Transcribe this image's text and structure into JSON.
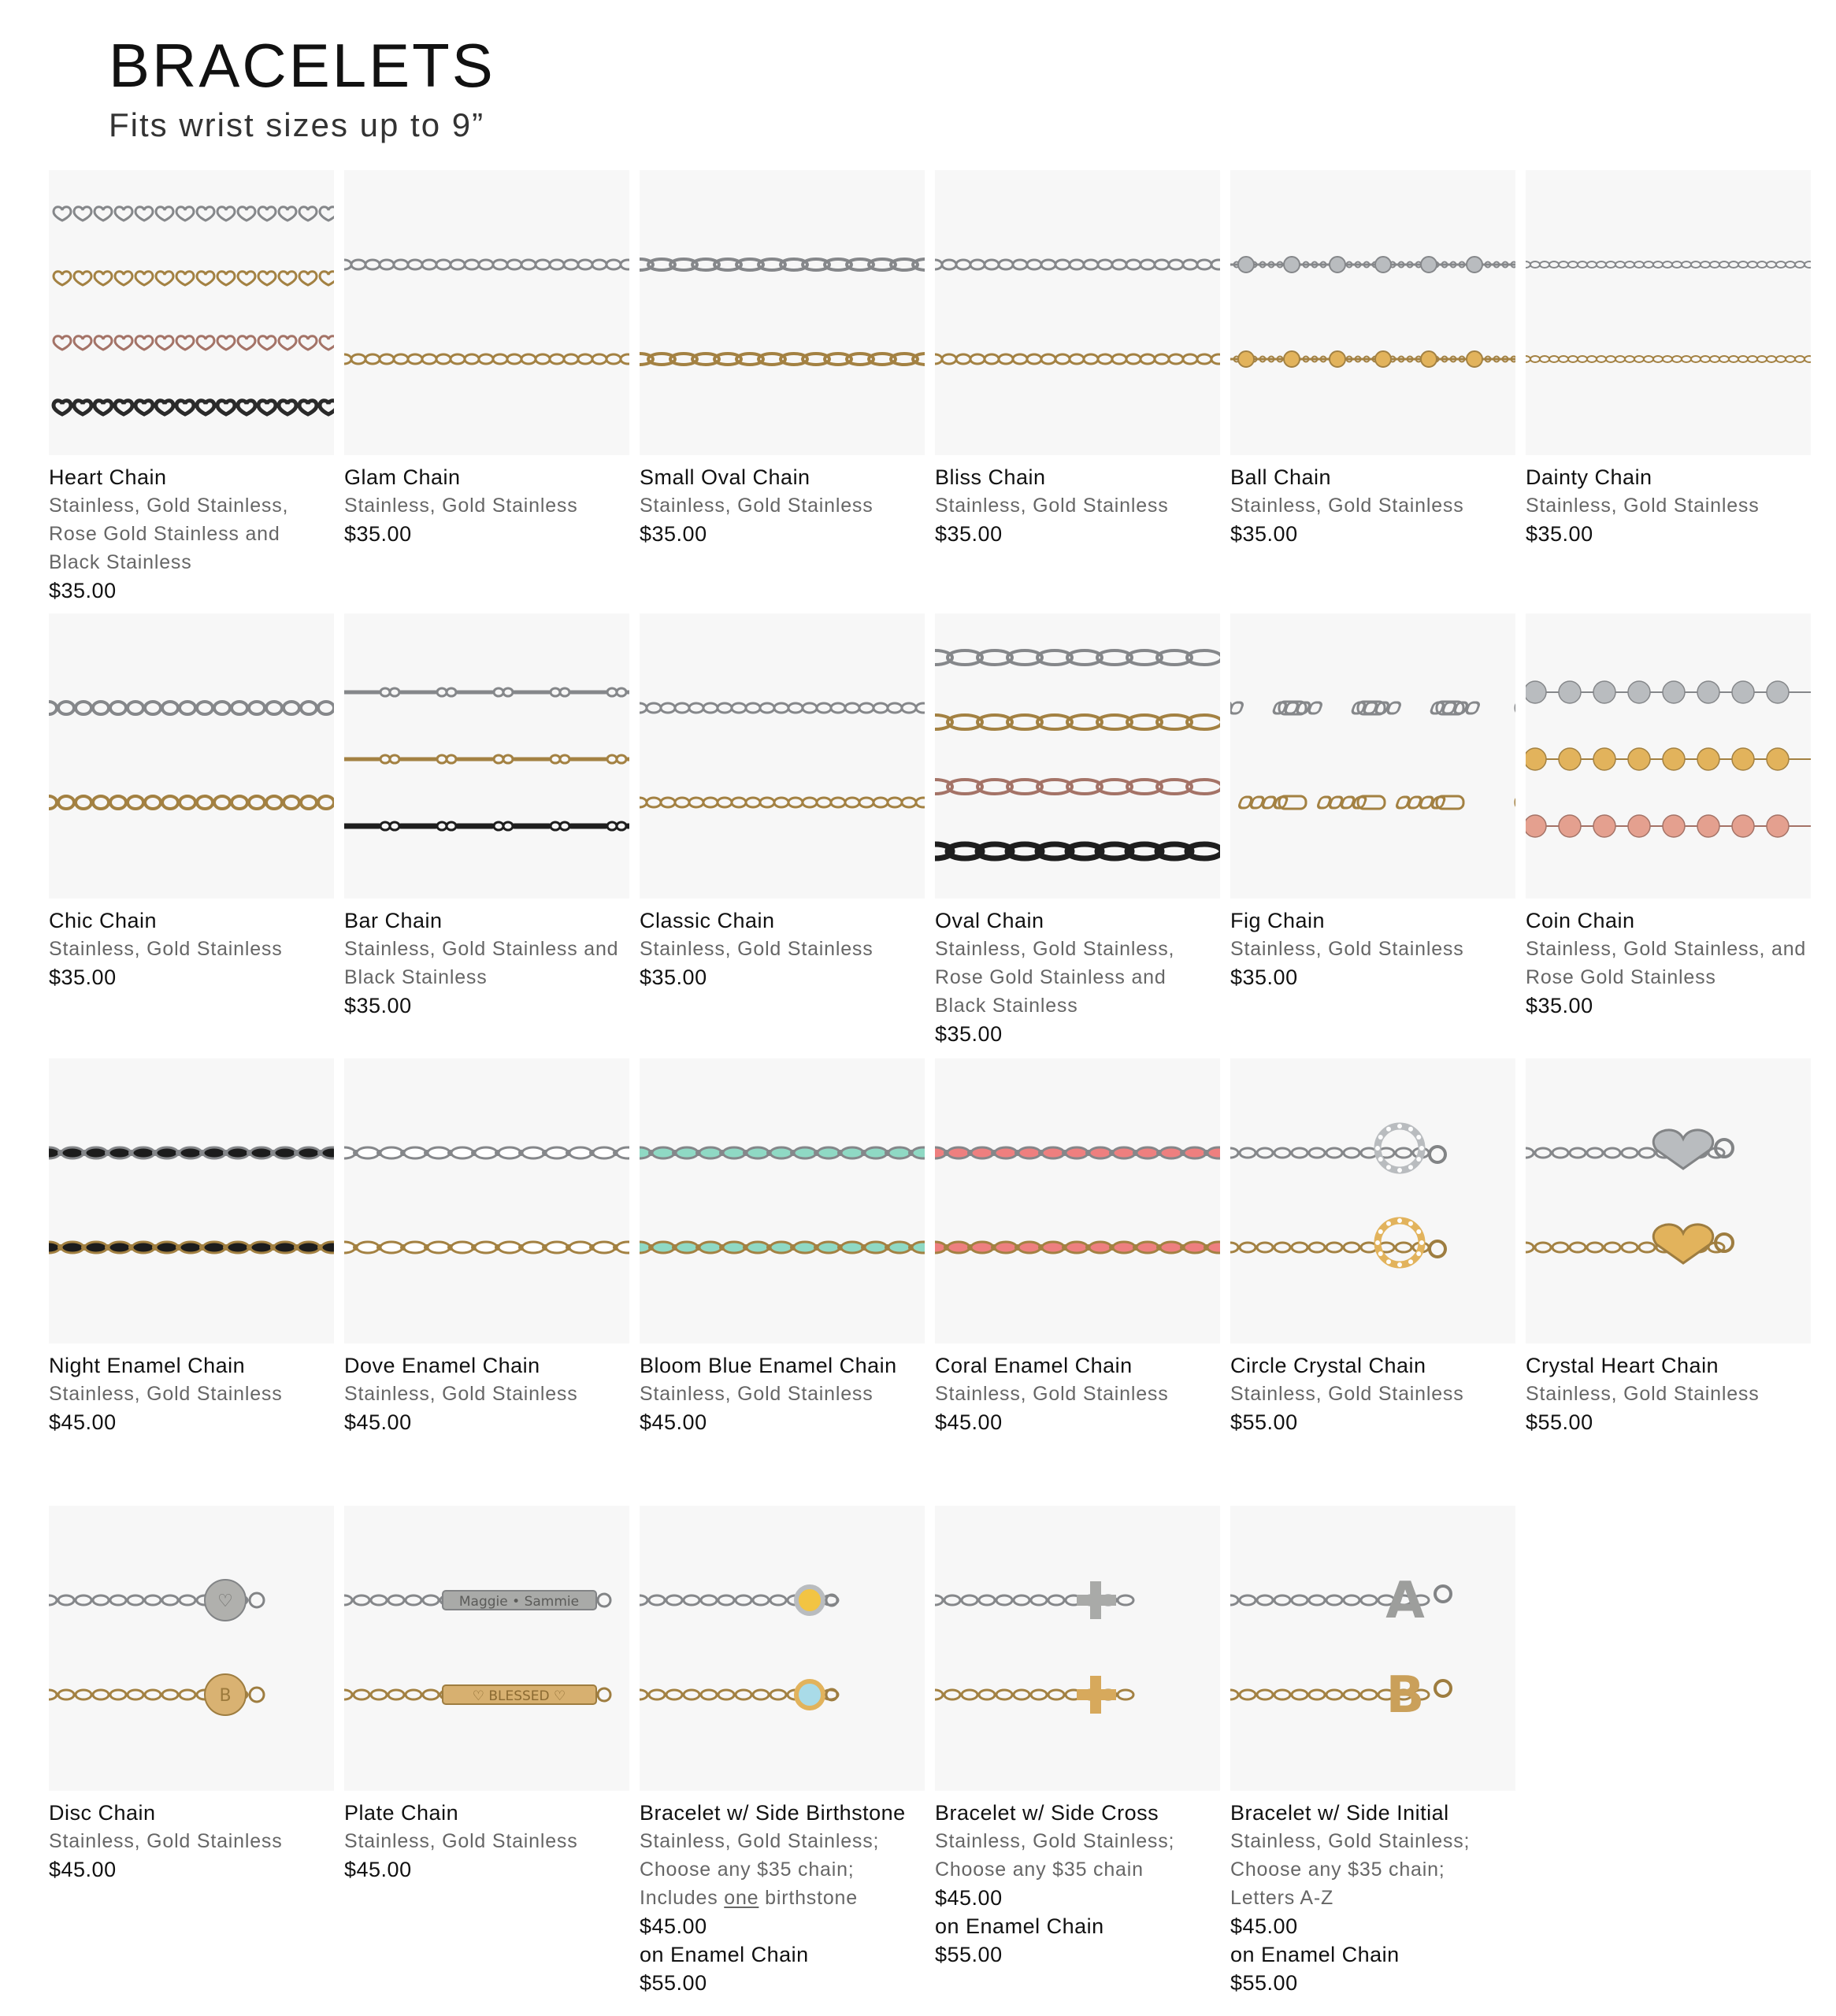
{
  "page": {
    "title": "BRACELETS",
    "subtitle": "Fits wrist sizes up to 9”"
  },
  "colors": {
    "silver": "#b9bcbf",
    "gold": "#e2b35c",
    "rose": "#e4a08f",
    "black": "#2a2a2a",
    "enamel_black": "#1c1c1c",
    "enamel_white": "#ffffff",
    "enamel_mint": "#8fd9c4",
    "enamel_coral": "#ee7f7f",
    "birthstone_yellow": "#f2c443",
    "birthstone_blue": "#a9dbe8",
    "background": "#f7f7f7"
  },
  "products": [
    {
      "name": "Heart Chain",
      "variants": "Stainless, Gold Stainless, Rose Gold Stainless and Black Stainless",
      "price": "$35.00",
      "style": "heart",
      "strands": [
        "silver",
        "gold",
        "rose",
        "black"
      ]
    },
    {
      "name": "Glam Chain",
      "variants": "Stainless, Gold Stainless",
      "price": "$35.00",
      "style": "glam",
      "strands": [
        "silver",
        "gold"
      ]
    },
    {
      "name": "Small Oval Chain",
      "variants": "Stainless, Gold Stainless",
      "price": "$35.00",
      "style": "oval",
      "strands": [
        "silver",
        "gold"
      ]
    },
    {
      "name": "Bliss Chain",
      "variants": "Stainless, Gold Stainless",
      "price": "$35.00",
      "style": "bliss",
      "strands": [
        "silver",
        "gold"
      ]
    },
    {
      "name": "Ball Chain",
      "variants": "Stainless, Gold Stainless",
      "price": "$35.00",
      "style": "ball",
      "strands": [
        "silver",
        "gold"
      ]
    },
    {
      "name": "Dainty Chain",
      "variants": "Stainless, Gold Stainless",
      "price": "$35.00",
      "style": "dainty",
      "strands": [
        "silver",
        "gold"
      ]
    },
    {
      "name": "Chic Chain",
      "variants": "Stainless, Gold Stainless",
      "price": "$35.00",
      "style": "chic",
      "strands": [
        "silver",
        "gold"
      ]
    },
    {
      "name": "Bar Chain",
      "variants": "Stainless, Gold Stainless and Black Stainless",
      "price": "$35.00",
      "style": "bar",
      "strands": [
        "silver",
        "gold",
        "black"
      ]
    },
    {
      "name": "Classic Chain",
      "variants": "Stainless, Gold Stainless",
      "price": "$35.00",
      "style": "classic",
      "strands": [
        "silver",
        "gold"
      ]
    },
    {
      "name": "Oval Chain",
      "variants": "Stainless, Gold Stainless, Rose Gold Stainless and Black Stainless",
      "price": "$35.00",
      "style": "bigoval",
      "strands": [
        "silver",
        "gold",
        "rose",
        "black"
      ]
    },
    {
      "name": "Fig Chain",
      "variants": "Stainless, Gold Stainless",
      "price": "$35.00",
      "style": "fig",
      "strands": [
        "silver",
        "gold"
      ]
    },
    {
      "name": "Coin Chain",
      "variants": "Stainless, Gold Stainless, and Rose Gold Stainless",
      "price": "$35.00",
      "style": "coin",
      "strands": [
        "silver",
        "gold",
        "rose"
      ]
    },
    {
      "name": "Night Enamel Chain",
      "variants": "Stainless, Gold Stainless",
      "price": "$45.00",
      "style": "enamel",
      "strands": [
        "silver",
        "gold"
      ],
      "enamel": "enamel_black"
    },
    {
      "name": "Dove Enamel Chain",
      "variants": "Stainless, Gold Stainless",
      "price": "$45.00",
      "style": "enamel",
      "strands": [
        "silver",
        "gold"
      ],
      "enamel": "enamel_white"
    },
    {
      "name": "Bloom Blue Enamel Chain",
      "variants": "Stainless, Gold Stainless",
      "price": "$45.00",
      "style": "enamel",
      "strands": [
        "silver",
        "gold"
      ],
      "enamel": "enamel_mint"
    },
    {
      "name": "Coral Enamel Chain",
      "variants": "Stainless, Gold Stainless",
      "price": "$45.00",
      "style": "enamel",
      "strands": [
        "silver",
        "gold"
      ],
      "enamel": "enamel_coral"
    },
    {
      "name": "Circle Crystal Chain",
      "variants": "Stainless, Gold Stainless",
      "price": "$55.00",
      "style": "circle-pendant",
      "strands": [
        "silver",
        "gold"
      ]
    },
    {
      "name": "Crystal Heart Chain",
      "variants": "Stainless, Gold Stainless",
      "price": "$55.00",
      "style": "heart-pendant",
      "strands": [
        "silver",
        "gold"
      ]
    },
    {
      "name": "Disc Chain",
      "variants": "Stainless, Gold Stainless",
      "price": "$45.00",
      "style": "disc",
      "strands": [
        "silver",
        "gold"
      ],
      "engravings": [
        "♡",
        "B"
      ]
    },
    {
      "name": "Plate Chain",
      "variants": "Stainless, Gold Stainless",
      "price": "$45.00",
      "style": "plate",
      "strands": [
        "silver",
        "gold"
      ],
      "engravings": [
        "Maggie • Sammie",
        "♡ BLESSED ♡"
      ]
    },
    {
      "name": "Bracelet w/ Side Birthstone",
      "variants_parts": [
        "Stainless, Gold Stainless; Choose any $35 chain; Includes ",
        "one",
        " birthstone"
      ],
      "price": "$45.00",
      "extra_label": "on Enamel Chain",
      "extra_price": "$55.00",
      "style": "birthstone",
      "strands": [
        "silver",
        "gold"
      ]
    },
    {
      "name": "Bracelet w/ Side Cross",
      "variants": "Stainless, Gold Stainless; Choose any $35 chain",
      "price": "$45.00",
      "extra_label": "on Enamel Chain",
      "extra_price": "$55.00",
      "style": "cross",
      "strands": [
        "silver",
        "gold"
      ]
    },
    {
      "name": "Bracelet w/ Side Initial",
      "variants": "Stainless, Gold Stainless; Choose any $35 chain; Letters A-Z",
      "price": "$45.00",
      "extra_label": "on Enamel Chain",
      "extra_price": "$55.00",
      "style": "initial",
      "strands": [
        "silver",
        "gold"
      ],
      "engravings": [
        "A",
        "B"
      ]
    }
  ]
}
